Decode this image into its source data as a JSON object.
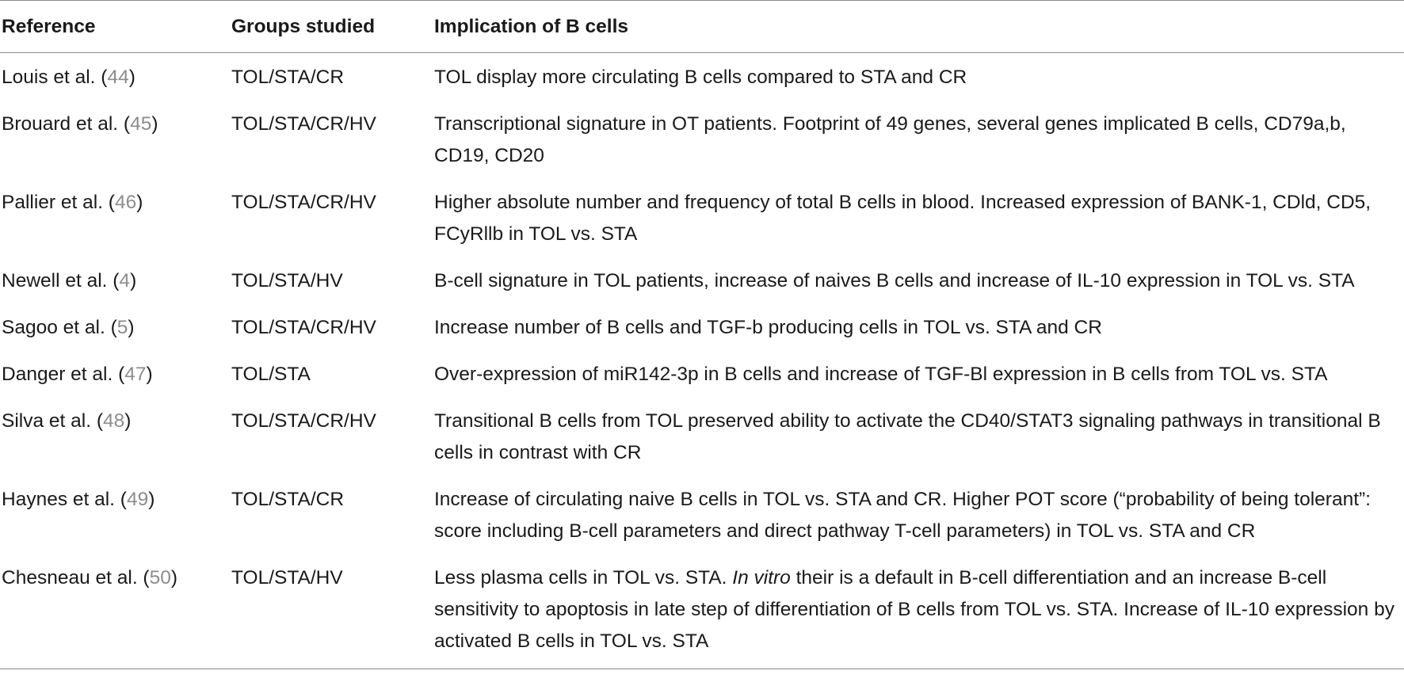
{
  "headers": {
    "reference": "Reference",
    "groups": "Groups studied",
    "implication": "Implication of B cells"
  },
  "rows": [
    {
      "author": "Louis et al. (",
      "ref": "44",
      "close": ")",
      "groups": "TOL/STA/CR",
      "implication": "TOL display more circulating B cells compared to STA and CR"
    },
    {
      "author": "Brouard et al. (",
      "ref": "45",
      "close": ")",
      "groups": "TOL/STA/CR/HV",
      "implication": "Transcriptional signature in OT patients. Footprint of 49 genes, several genes implicated B cells, CD79a,b, CD19, CD20"
    },
    {
      "author": "Pallier et al. (",
      "ref": "46",
      "close": ")",
      "groups": "TOL/STA/CR/HV",
      "implication": "Higher absolute number and frequency of total B cells in blood. Increased expression of BANK-1, CDld, CD5, FCyRllb in TOL vs. STA"
    },
    {
      "author": "Newell et al. (",
      "ref": "4",
      "close": ")",
      "groups": "TOL/STA/HV",
      "implication": "B-cell signature in TOL patients, increase of naives B cells and increase of IL-10 expression in TOL vs. STA"
    },
    {
      "author": "Sagoo et al. (",
      "ref": "5",
      "close": ")",
      "groups": "TOL/STA/CR/HV",
      "implication": "Increase number of B cells and TGF-b producing cells in TOL vs. STA and CR"
    },
    {
      "author": "Danger et al. (",
      "ref": "47",
      "close": ")",
      "groups": "TOL/STA",
      "implication": "Over-expression of miR142-3p in B cells and increase of TGF-Bl expression in B cells from TOL vs. STA"
    },
    {
      "author": "Silva et al. (",
      "ref": "48",
      "close": ")",
      "groups": "TOL/STA/CR/HV",
      "implication": "Transitional B cells from TOL preserved ability to activate the CD40/STAT3 signaling pathways in transitional B cells in contrast with CR"
    },
    {
      "author": "Haynes et al. (",
      "ref": "49",
      "close": ")",
      "groups": "TOL/STA/CR",
      "implication": "Increase of circulating naive B cells in TOL vs. STA and CR. Higher POT score (“probability of being tolerant”: score including B-cell parameters and direct pathway T-cell parameters) in TOL vs. STA and CR"
    },
    {
      "author": "Chesneau et al. (",
      "ref": "50",
      "close": ")",
      "groups": "TOL/STA/HV",
      "implication_pre": "Less plasma cells in TOL vs. STA. ",
      "implication_italic": "In vitro",
      "implication_post": " their is a default in B-cell differentiation and an increase B-cell sensitivity to apoptosis in late step of differentiation of B cells from TOL vs. STA. Increase of IL-10 expression by activated B cells in TOL vs. STA"
    }
  ]
}
